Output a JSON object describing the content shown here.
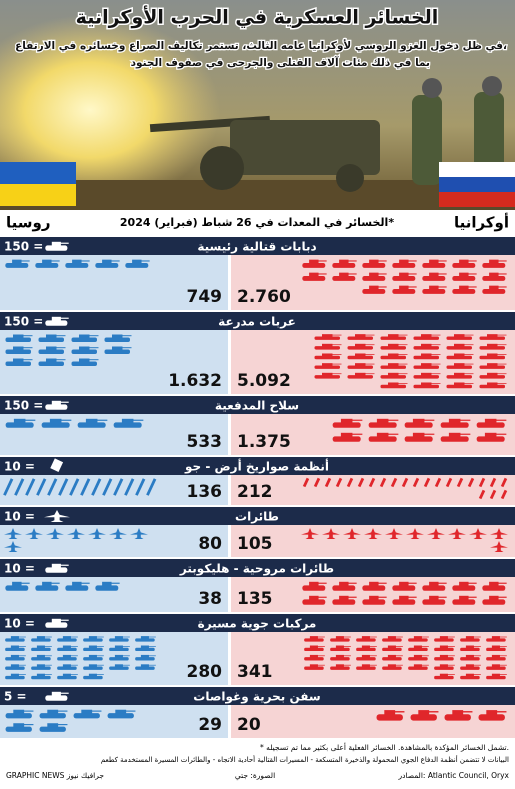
{
  "chart_data": {
    "type": "pictogram",
    "title": "الخسائر العسكرية في الحرب الأوكرانية",
    "subtitle": [
      "في ظل دخول الغزو الروسي لأوكرانيا عامه الثالث، تستمر تكاليف الصراع وخسائره في الارتفاع،",
      "بما في ذلك مئات آلاف القتلى والجرحى في صفوف الجنود"
    ],
    "header": "الخسائر في المعدات في 26 شباط (فبراير) 2024*",
    "categories": [
      "دبابات قتالية رئيسية",
      "عربات مدرعة",
      "سلاح المدفعية",
      "أنظمة صواريخ أرض - جو",
      "طائرات",
      "طائرات مروحية - هليكوبتر",
      "مركبات جوية مسيرة",
      "سفن بحرية وغواصات"
    ],
    "units": [
      150,
      150,
      150,
      10,
      10,
      10,
      10,
      5
    ],
    "unit_labels": [
      "150 =",
      "150 =",
      "150 =",
      "10 =",
      "10 =",
      "10 =",
      "10 =",
      "5 ="
    ],
    "series": [
      {
        "name": "روسيا",
        "color": "#2b7cc4",
        "values": [
          749,
          1632,
          533,
          136,
          80,
          38,
          280,
          29
        ],
        "value_labels": [
          "749",
          "1.632",
          "533",
          "136",
          "80",
          "38",
          "280",
          "29"
        ]
      },
      {
        "name": "أوكرانيا",
        "color": "#e0262b",
        "values": [
          2760,
          5092,
          1375,
          212,
          105,
          135,
          341,
          20
        ],
        "value_labels": [
          "2.760",
          "5.092",
          "1.375",
          "212",
          "105",
          "135",
          "341",
          "20"
        ]
      }
    ],
    "footnotes": [
      "* تشمل الخسائر المؤكدة بالمشاهدة. الخسائر الفعلية أعلى بكثير مما تم تسجيله.",
      "البيانات لا تتضمن أنظمة الدفاع الجوي المحمولة والذخيرة المتسكعة - المسيرات القتالية أحادية الاتجاه - والطائرات المسيرة المستخدمة كطعم"
    ],
    "source": "المصادر: Atlantic Council, Oryx",
    "photo_credit": "الصورة: جتي",
    "credit": "GRAPHIC NEWS جرافيك نيوز"
  }
}
